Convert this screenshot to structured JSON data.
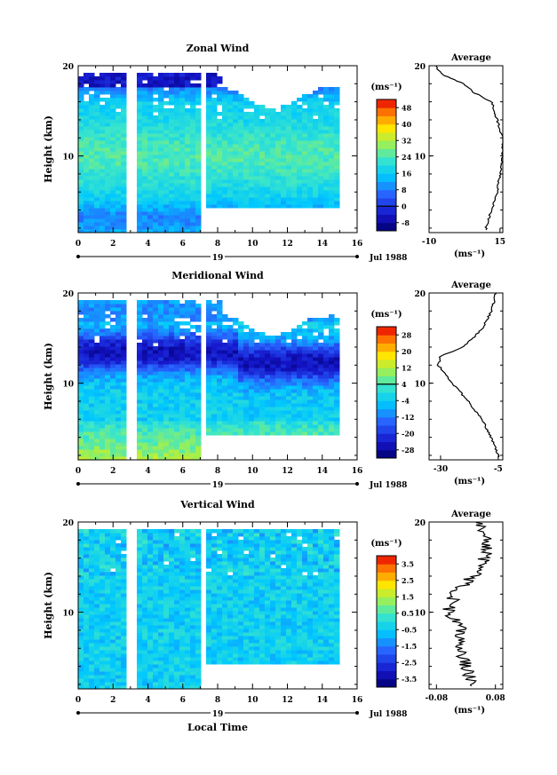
{
  "figure": {
    "xlabel": "Local Time",
    "date_label": "Jul 1988",
    "day_label": "19",
    "avg_title": "Average",
    "avg_unit": "(ms⁻¹)",
    "ylabel": "Height (km)",
    "cbar_unit": "(ms⁻¹)"
  },
  "chart_data": [
    {
      "type": "heatmap",
      "title": "Zonal Wind",
      "xlabel": "Local Time",
      "ylabel": "Height (km)",
      "xlim": [
        0,
        16
      ],
      "ylim": [
        1.5,
        20
      ],
      "xticks": [
        0,
        2,
        4,
        6,
        8,
        10,
        12,
        14,
        16
      ],
      "yticks": [
        10,
        20
      ],
      "colorbar": {
        "label": "(ms⁻¹)",
        "ticks": [
          -8,
          0,
          8,
          16,
          24,
          32,
          40,
          48
        ],
        "range": [
          -12,
          52
        ],
        "zero_line": 0
      },
      "gaps_hours": [
        [
          2.8,
          3.3
        ],
        [
          6.9,
          7.2
        ]
      ],
      "data_end_hour": 14.8,
      "average_profile": {
        "title": "Average",
        "xlabel": "(ms⁻¹)",
        "xlim": [
          -10,
          16
        ],
        "xticks": [
          -10,
          15
        ],
        "height_km": [
          2,
          4,
          6,
          8,
          10,
          12,
          14,
          16,
          17,
          18,
          19,
          20
        ],
        "value": [
          10,
          12,
          14,
          15,
          16,
          16,
          14,
          12,
          6,
          2,
          -5,
          -8
        ]
      }
    },
    {
      "type": "heatmap",
      "title": "Meridional Wind",
      "xlabel": "Local Time",
      "ylabel": "Height (km)",
      "xlim": [
        0,
        16
      ],
      "ylim": [
        1.5,
        20
      ],
      "xticks": [
        0,
        2,
        4,
        6,
        8,
        10,
        12,
        14,
        16
      ],
      "yticks": [
        10,
        20
      ],
      "colorbar": {
        "label": "(ms⁻¹)",
        "ticks": [
          -28,
          -20,
          -12,
          -4,
          4,
          12,
          20,
          28
        ],
        "range": [
          -32,
          32
        ],
        "zero_line": 4
      },
      "gaps_hours": [
        [
          2.8,
          3.3
        ],
        [
          6.9,
          7.2
        ]
      ],
      "data_end_hour": 14.8,
      "average_profile": {
        "title": "Average",
        "xlabel": "(ms⁻¹)",
        "xlim": [
          -35,
          -3
        ],
        "xticks": [
          -30,
          -5
        ],
        "height_km": [
          2,
          4,
          6,
          8,
          10,
          12,
          13,
          14,
          16,
          18,
          20
        ],
        "value": [
          -5,
          -8,
          -12,
          -18,
          -25,
          -31,
          -30,
          -20,
          -12,
          -8,
          -6
        ]
      }
    },
    {
      "type": "heatmap",
      "title": "Vertical Wind",
      "xlabel": "Local Time",
      "ylabel": "Height (km)",
      "xlim": [
        0,
        16
      ],
      "ylim": [
        1.5,
        20
      ],
      "xticks": [
        0,
        2,
        4,
        6,
        8,
        10,
        12,
        14,
        16
      ],
      "yticks": [
        10,
        20
      ],
      "colorbar": {
        "label": "(ms⁻¹)",
        "ticks": [
          -3.5,
          -2.5,
          -1.5,
          -0.5,
          0.5,
          1.5,
          2.5,
          3.5
        ],
        "range": [
          -4,
          4
        ]
      },
      "gaps_hours": [
        [
          2.8,
          3.3
        ],
        [
          6.9,
          7.2
        ]
      ],
      "data_end_hour": 14.8,
      "average_profile": {
        "title": "Average",
        "xlabel": "(ms⁻¹)",
        "xlim": [
          -0.1,
          0.1
        ],
        "xticks": [
          -0.08,
          0.08
        ],
        "height_km": [
          2,
          4,
          6,
          8,
          10,
          12,
          14,
          16,
          18,
          20
        ],
        "value": [
          0.02,
          0.0,
          -0.02,
          -0.01,
          -0.05,
          -0.03,
          0.02,
          0.05,
          0.06,
          0.04
        ]
      }
    }
  ]
}
